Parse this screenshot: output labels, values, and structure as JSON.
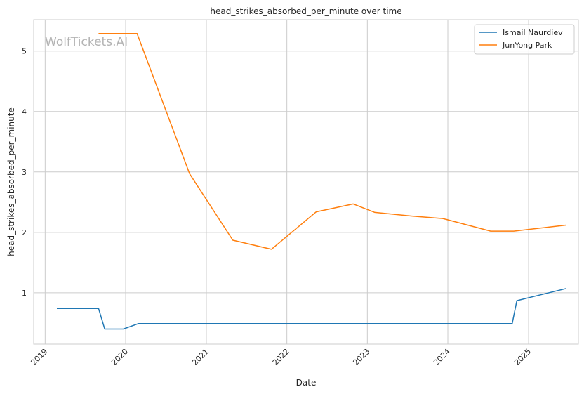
{
  "chart_data": {
    "type": "line",
    "title": "head_strikes_absorbed_per_minute over time",
    "xlabel": "Date",
    "ylabel": "head_strikes_absorbed_per_minute",
    "watermark": "WolfTickets.AI",
    "x_ticks": [
      "2019",
      "2020",
      "2021",
      "2022",
      "2023",
      "2024",
      "2025"
    ],
    "y_ticks": [
      1,
      2,
      3,
      4,
      5
    ],
    "ylim": [
      0.15,
      5.52
    ],
    "xlim": [
      "2018-11-10",
      "2025-08-15"
    ],
    "grid": true,
    "legend_position": "top-right",
    "series": [
      {
        "name": "Ismail Naurdiev",
        "color": "#1f77b4",
        "points": [
          [
            "2019-02-23",
            0.74
          ],
          [
            "2019-08-31",
            0.74
          ],
          [
            "2019-09-28",
            0.4
          ],
          [
            "2019-12-21",
            0.4
          ],
          [
            "2020-02-29",
            0.49
          ],
          [
            "2024-10-19",
            0.49
          ],
          [
            "2024-11-09",
            0.87
          ],
          [
            "2025-06-21",
            1.07
          ]
        ]
      },
      {
        "name": "JunYong Park",
        "color": "#ff7f0e",
        "points": [
          [
            "2019-08-31",
            5.29
          ],
          [
            "2020-02-22",
            5.29
          ],
          [
            "2020-10-17",
            2.97
          ],
          [
            "2021-05-01",
            1.87
          ],
          [
            "2021-10-23",
            1.72
          ],
          [
            "2022-05-14",
            2.34
          ],
          [
            "2022-10-29",
            2.47
          ],
          [
            "2023-02-04",
            2.33
          ],
          [
            "2023-07-22",
            2.27
          ],
          [
            "2023-12-09",
            2.23
          ],
          [
            "2024-07-13",
            2.02
          ],
          [
            "2024-10-26",
            2.02
          ],
          [
            "2025-06-21",
            2.12
          ]
        ]
      }
    ]
  }
}
